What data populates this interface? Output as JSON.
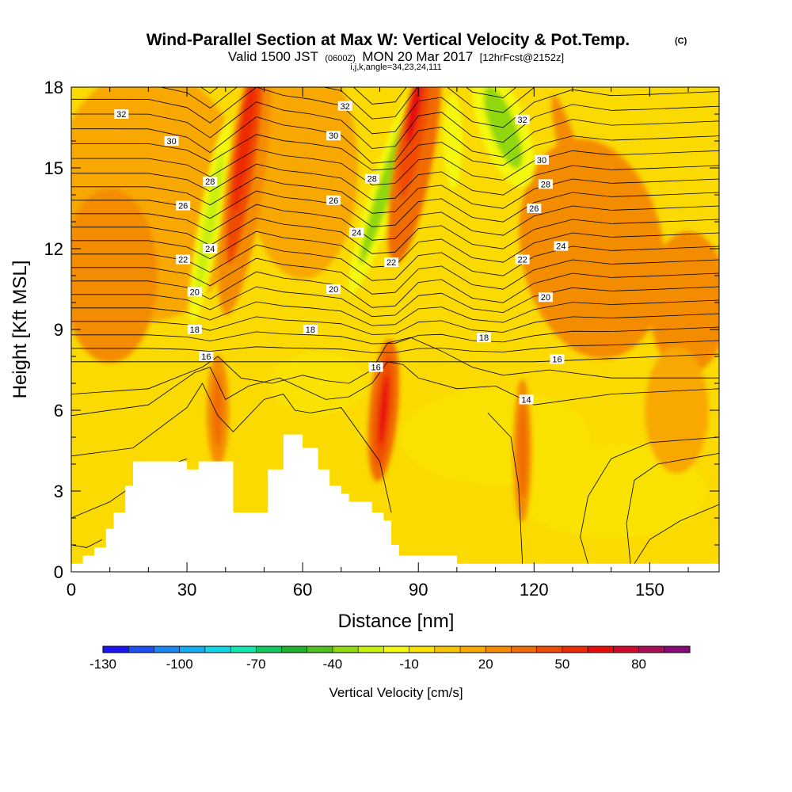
{
  "header": {
    "title": "Wind-Parallel Section at Max W: Vertical Velocity & Pot.Temp.",
    "title_tag": "(C)",
    "valid_prefix": "Valid 1500 JST",
    "valid_zulu": "(0600Z)",
    "valid_date": "MON 20 Mar 2017",
    "valid_fcst": "[12hrFcst@2152z]",
    "indices": "i,j,k,angle=34,23,24,111"
  },
  "chart_data": {
    "type": "heatmap",
    "xlabel": "Distance [nm]",
    "ylabel": "Height [Kft MSL]",
    "xlim": [
      0,
      168
    ],
    "ylim": [
      0,
      18
    ],
    "x_ticks": [
      0,
      30,
      60,
      90,
      120,
      150
    ],
    "y_ticks": [
      0,
      3,
      6,
      9,
      12,
      15,
      18
    ],
    "grid": false,
    "colorbar": {
      "label": "Vertical Velocity [cm/s]",
      "tick_labels": [
        "-130",
        "-100",
        "-70",
        "-40",
        "-10",
        "20",
        "50",
        "80"
      ],
      "min": -130,
      "max": 100,
      "step": 10,
      "colors": [
        "#1b15f5",
        "#1e4ff5",
        "#1a85f5",
        "#10b0f0",
        "#10d6e8",
        "#10e6b0",
        "#10c860",
        "#20b030",
        "#50c020",
        "#90d810",
        "#c8f010",
        "#f4f810",
        "#fae200",
        "#f8c400",
        "#f8a800",
        "#f48c00",
        "#f06c00",
        "#f04c00",
        "#ee2a00",
        "#e80a08",
        "#d0082c",
        "#aa0a58",
        "#880a78"
      ]
    },
    "terrain_profile": {
      "x": [
        0,
        3,
        3,
        6,
        6,
        9,
        9,
        11,
        11,
        14,
        14,
        16,
        16,
        20,
        20,
        30,
        30,
        33,
        33,
        42,
        42,
        46,
        46,
        51,
        51,
        55,
        55,
        60,
        60,
        64,
        64,
        67,
        67,
        70,
        70,
        72,
        72,
        74,
        74,
        78,
        78,
        81,
        81,
        83,
        83,
        85,
        85,
        88,
        88,
        100,
        100,
        168
      ],
      "y": [
        0.3,
        0.3,
        0.6,
        0.6,
        0.9,
        0.9,
        1.6,
        1.6,
        2.2,
        2.2,
        3.2,
        3.2,
        4.1,
        4.1,
        4.1,
        4.1,
        3.8,
        3.8,
        4.1,
        4.1,
        2.2,
        2.2,
        2.2,
        2.2,
        3.8,
        3.8,
        5.1,
        5.1,
        4.6,
        4.6,
        3.8,
        3.8,
        3.2,
        3.2,
        2.9,
        2.9,
        2.6,
        2.6,
        2.6,
        2.6,
        2.2,
        2.2,
        1.9,
        1.9,
        1.0,
        1.0,
        0.6,
        0.6,
        0.6,
        0.6,
        0.3,
        0.3
      ]
    },
    "updraft_cores": [
      {
        "x": 45,
        "y": 15.0,
        "w_cm_s": 50
      },
      {
        "x": 89,
        "y": 16.5,
        "w_cm_s": 55
      },
      {
        "x": 81,
        "y": 6.0,
        "w_cm_s": 55
      },
      {
        "x": 117,
        "y": 4.5,
        "w_cm_s": 30
      },
      {
        "x": 38,
        "y": 6.0,
        "w_cm_s": 25
      }
    ],
    "downdraft_cores": [
      {
        "x": 36,
        "y": 13.0,
        "w_cm_s": -25
      },
      {
        "x": 82,
        "y": 15.0,
        "w_cm_s": -35
      },
      {
        "x": 112,
        "y": 16.5,
        "w_cm_s": -40
      }
    ],
    "theta_contour_labels": [
      {
        "text": "32",
        "x": 13,
        "y": 17.0
      },
      {
        "text": "30",
        "x": 26,
        "y": 16.0
      },
      {
        "text": "28",
        "x": 36,
        "y": 14.5
      },
      {
        "text": "26",
        "x": 29,
        "y": 13.6
      },
      {
        "text": "24",
        "x": 36,
        "y": 12.0
      },
      {
        "text": "22",
        "x": 29,
        "y": 11.6
      },
      {
        "text": "20",
        "x": 32,
        "y": 10.4
      },
      {
        "text": "18",
        "x": 32,
        "y": 9.0
      },
      {
        "text": "16",
        "x": 35,
        "y": 8.0
      },
      {
        "text": "32",
        "x": 71,
        "y": 17.3
      },
      {
        "text": "30",
        "x": 68,
        "y": 16.2
      },
      {
        "text": "28",
        "x": 78,
        "y": 14.6
      },
      {
        "text": "26",
        "x": 68,
        "y": 13.8
      },
      {
        "text": "24",
        "x": 74,
        "y": 12.6
      },
      {
        "text": "22",
        "x": 83,
        "y": 11.5
      },
      {
        "text": "20",
        "x": 68,
        "y": 10.5
      },
      {
        "text": "18",
        "x": 62,
        "y": 9.0
      },
      {
        "text": "16",
        "x": 79,
        "y": 7.6
      },
      {
        "text": "32",
        "x": 117,
        "y": 16.8
      },
      {
        "text": "30",
        "x": 122,
        "y": 15.3
      },
      {
        "text": "28",
        "x": 123,
        "y": 14.4
      },
      {
        "text": "26",
        "x": 120,
        "y": 13.5
      },
      {
        "text": "24",
        "x": 127,
        "y": 12.1
      },
      {
        "text": "22",
        "x": 117,
        "y": 11.6
      },
      {
        "text": "20",
        "x": 123,
        "y": 10.2
      },
      {
        "text": "18",
        "x": 107,
        "y": 8.7
      },
      {
        "text": "16",
        "x": 126,
        "y": 7.9
      },
      {
        "text": "14",
        "x": 118,
        "y": 6.4
      }
    ]
  }
}
